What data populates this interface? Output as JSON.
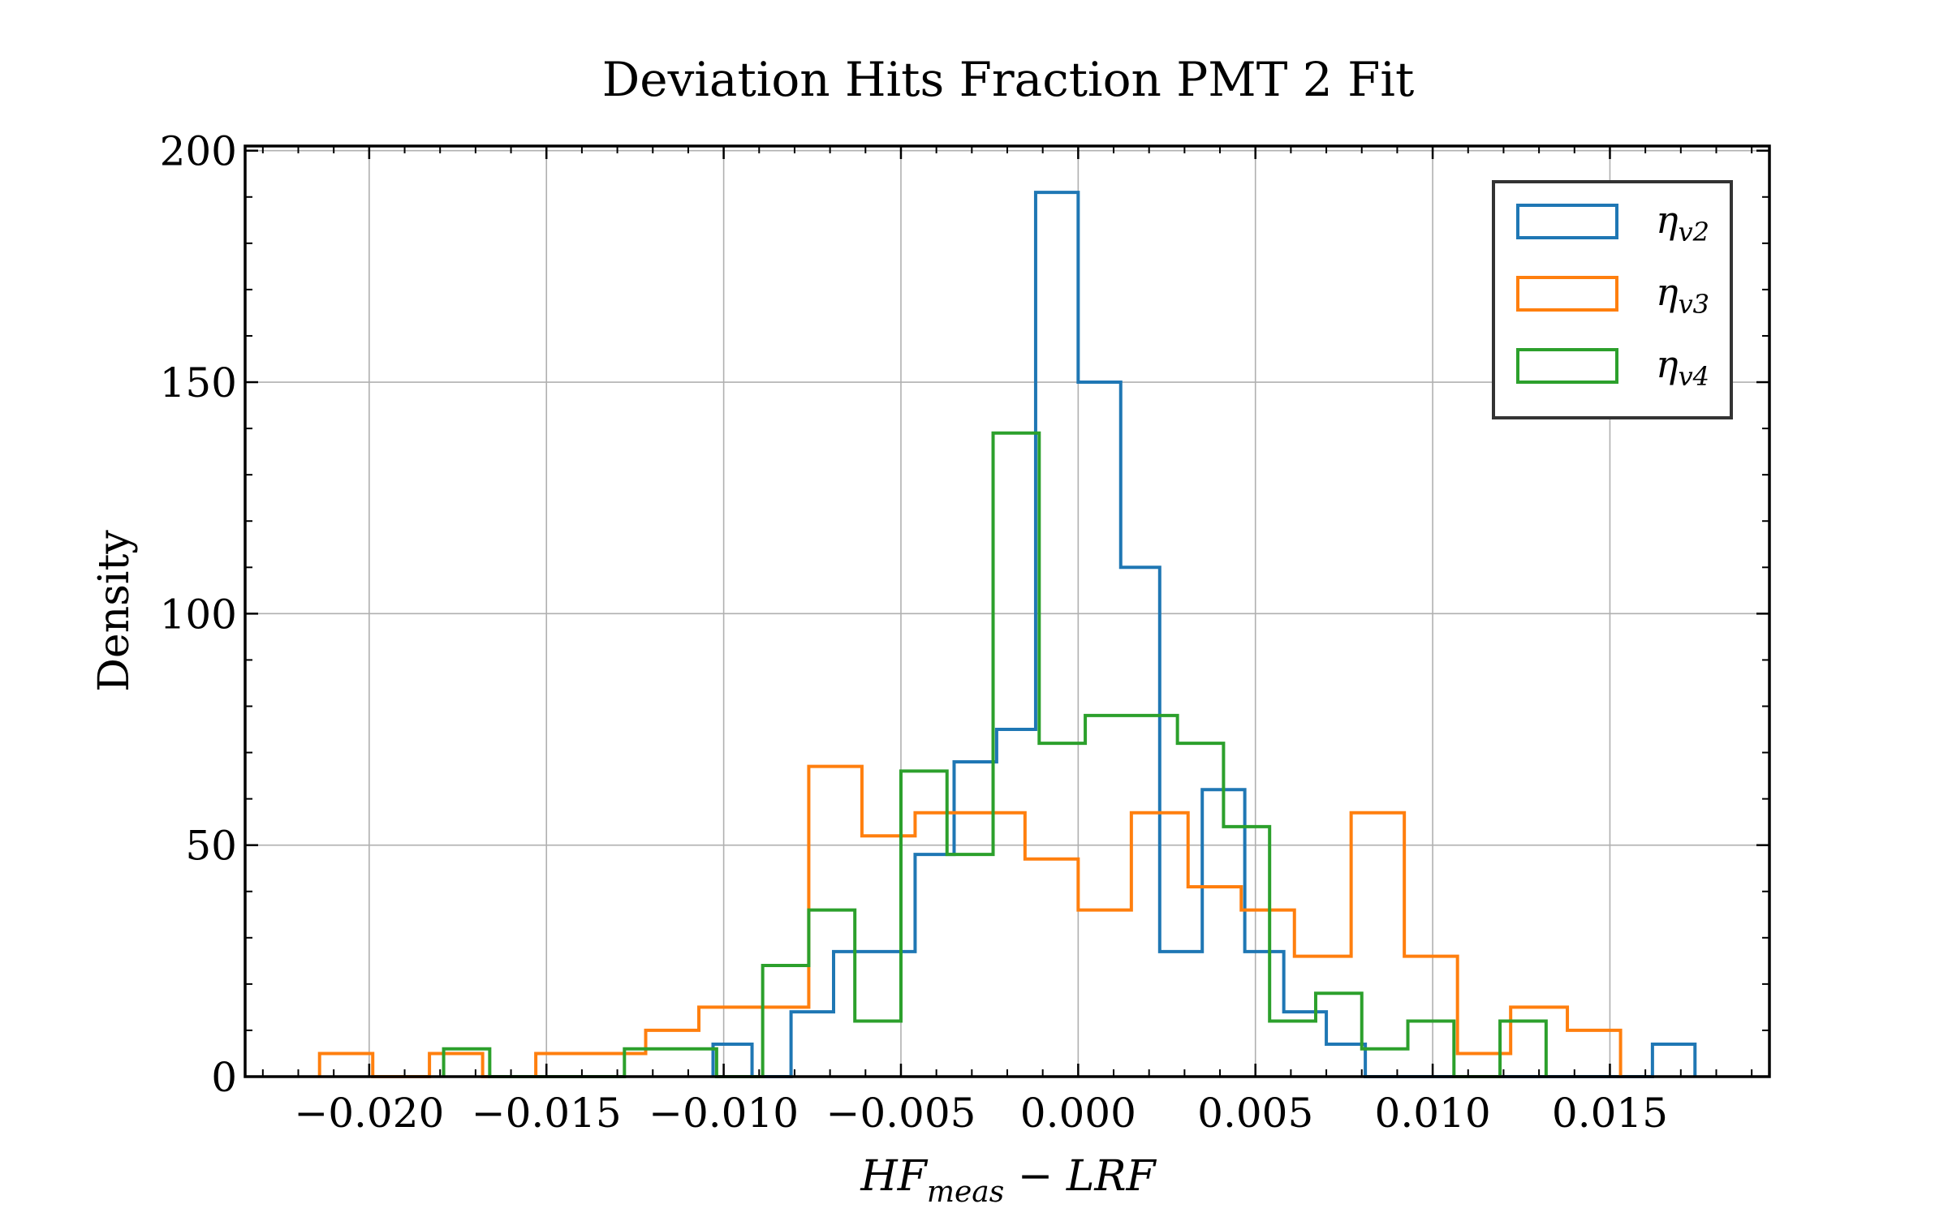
{
  "chart_data": {
    "type": "histogram",
    "title": "Deviation Hits Fraction PMT 2 Fit",
    "xlabel": "HF_meas − LRF",
    "xlabel_main1": "HF",
    "xlabel_sub": "meas",
    "xlabel_main2": " − LRF",
    "ylabel": "Density",
    "xlim": [
      -0.0235,
      0.0195
    ],
    "ylim": [
      0,
      201
    ],
    "xticks": [
      -0.02,
      -0.015,
      -0.01,
      -0.005,
      0.0,
      0.005,
      0.01,
      0.015
    ],
    "xtick_labels": [
      "−0.020",
      "−0.015",
      "−0.010",
      "−0.005",
      "0.000",
      "0.005",
      "0.010",
      "0.015"
    ],
    "yticks": [
      0,
      50,
      100,
      150,
      200
    ],
    "ytick_labels": [
      "0",
      "50",
      "100",
      "150",
      "200"
    ],
    "grid": true,
    "legend_position": "top-right",
    "series": [
      {
        "name": "η_v2",
        "legend_main": "η",
        "legend_sub": "v2",
        "color": "#1f77b4",
        "edges": [
          -0.0103,
          -0.0092,
          -0.0081,
          -0.0069,
          -0.0058,
          -0.0046,
          -0.0035,
          -0.0023,
          -0.0012,
          0.0,
          0.0012,
          0.0023,
          0.0035,
          0.0047,
          0.0058,
          0.007,
          0.0081,
          0.0093,
          0.0104,
          0.0116,
          0.0127,
          0.0139,
          0.015,
          0.0162,
          0.0174
        ],
        "values": [
          7,
          0,
          14,
          27,
          27,
          48,
          68,
          75,
          191,
          150,
          110,
          27,
          62,
          27,
          14,
          7,
          0,
          0,
          0,
          0,
          0,
          0,
          0,
          7
        ]
      },
      {
        "name": "η_v3",
        "legend_main": "η",
        "legend_sub": "v3",
        "color": "#ff7f0e",
        "edges": [
          -0.0214,
          -0.0199,
          -0.0183,
          -0.0168,
          -0.0153,
          -0.0138,
          -0.0122,
          -0.0107,
          -0.0092,
          -0.0076,
          -0.0061,
          -0.0046,
          -0.0031,
          -0.0015,
          0.0,
          0.0015,
          0.0031,
          0.0046,
          0.0061,
          0.0077,
          0.0092,
          0.0107,
          0.0122,
          0.0138,
          0.0153
        ],
        "values": [
          5,
          0,
          5,
          0,
          5,
          5,
          10,
          15,
          15,
          67,
          52,
          57,
          57,
          47,
          36,
          57,
          41,
          36,
          26,
          57,
          26,
          5,
          15,
          10
        ]
      },
      {
        "name": "η_v4",
        "legend_main": "η",
        "legend_sub": "v4",
        "color": "#2ca02c",
        "edges": [
          -0.0179,
          -0.0166,
          -0.0153,
          -0.0141,
          -0.0128,
          -0.0115,
          -0.0102,
          -0.0089,
          -0.0076,
          -0.0063,
          -0.005,
          -0.0037,
          -0.0024,
          -0.0011,
          0.0002,
          0.0015,
          0.0028,
          0.0041,
          0.0054,
          0.0067,
          0.008,
          0.0093,
          0.0106,
          0.0119,
          0.0132
        ],
        "values": [
          6,
          0,
          0,
          0,
          6,
          6,
          0,
          24,
          36,
          12,
          66,
          48,
          139,
          72,
          78,
          78,
          72,
          54,
          12,
          18,
          6,
          12,
          0,
          12
        ]
      }
    ]
  }
}
